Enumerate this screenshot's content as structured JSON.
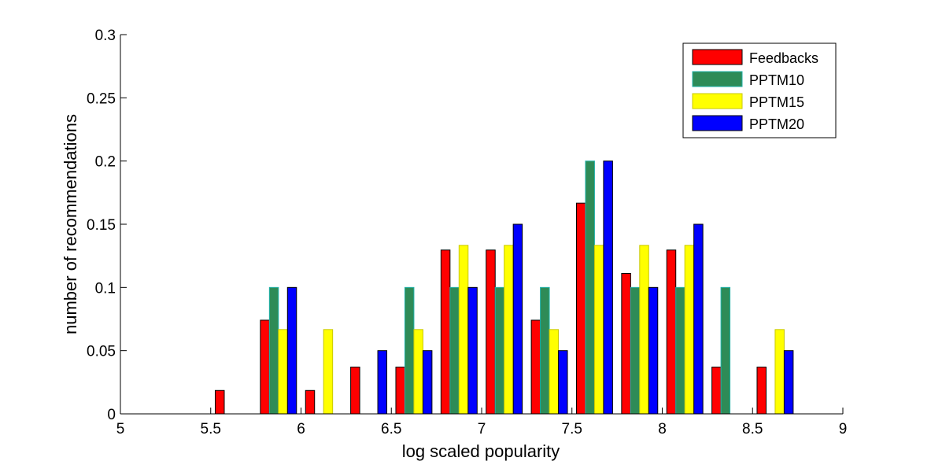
{
  "chart_data": {
    "type": "bar",
    "title": "",
    "xlabel": "log scaled popularity",
    "ylabel": "number of recommendations",
    "xlim": [
      5,
      9
    ],
    "ylim": [
      0,
      0.3
    ],
    "xticks": [
      5,
      5.5,
      6,
      6.5,
      7,
      7.5,
      8,
      8.5,
      9
    ],
    "xtick_labels": [
      "5",
      "5.5",
      "6",
      "6.5",
      "7",
      "7.5",
      "8",
      "8.5",
      "9"
    ],
    "yticks": [
      0,
      0.05,
      0.1,
      0.15,
      0.2,
      0.25,
      0.3
    ],
    "ytick_labels": [
      "0",
      "0.05",
      "0.1",
      "0.15",
      "0.2",
      "0.25",
      "0.3"
    ],
    "grid": false,
    "legend_position": "top-right",
    "categories": [
      5.125,
      5.375,
      5.625,
      5.875,
      6.125,
      6.375,
      6.625,
      6.875,
      7.125,
      7.375,
      7.625,
      7.875,
      8.125,
      8.375,
      8.625,
      8.875
    ],
    "series": [
      {
        "name": "Feedbacks",
        "color": "#ff0000",
        "edge": "#000000",
        "values": [
          0,
          0,
          0.0185,
          0.0741,
          0.0185,
          0.037,
          0.037,
          0.1296,
          0.1296,
          0.0741,
          0.1667,
          0.1111,
          0.1296,
          0.037,
          0.037,
          0
        ]
      },
      {
        "name": "PPTM10",
        "color": "#2e8b57",
        "edge": "#20b2aa",
        "values": [
          0,
          0,
          0,
          0.1,
          0,
          0,
          0.1,
          0.1,
          0.1,
          0.1,
          0.2,
          0.1,
          0.1,
          0.1,
          0,
          0
        ]
      },
      {
        "name": "PPTM15",
        "color": "#ffff00",
        "edge": "#c8c800",
        "values": [
          0,
          0,
          0,
          0.0667,
          0.0667,
          0,
          0.0667,
          0.1333,
          0.1333,
          0.0667,
          0.1333,
          0.1333,
          0.1333,
          0,
          0.0667,
          0
        ]
      },
      {
        "name": "PPTM20",
        "color": "#0000ff",
        "edge": "#000000",
        "values": [
          0,
          0,
          0,
          0.1,
          0,
          0.05,
          0.05,
          0.1,
          0.15,
          0.05,
          0.2,
          0.1,
          0.15,
          0,
          0.05,
          0
        ]
      }
    ]
  }
}
